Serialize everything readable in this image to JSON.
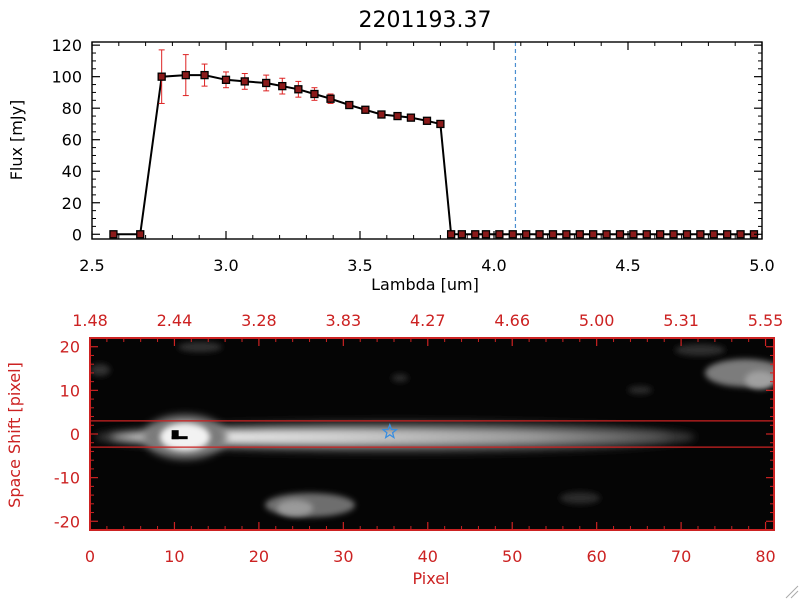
{
  "colors": {
    "axis_top": "#000000",
    "axis_bottom": "#cc2222",
    "errorbar": "#dd2222",
    "marker": "#000000",
    "marker_fill": "#8b1a1a",
    "dashed_line": "#4a8fd0",
    "star": "#3a8ee0",
    "band_line": "#cc2222"
  },
  "chart_data": [
    {
      "type": "line",
      "title": "2201193.37",
      "xlabel": "Lambda [um]",
      "ylabel": "Flux [mJy]",
      "xlim": [
        2.5,
        5.0
      ],
      "ylim": [
        -3,
        122
      ],
      "x_ticks": [
        "2.5",
        "3.0",
        "3.5",
        "4.0",
        "4.5",
        "5.0"
      ],
      "x_tick_values": [
        2.5,
        3.0,
        3.5,
        4.0,
        4.5,
        5.0
      ],
      "y_ticks": [
        "0",
        "20",
        "40",
        "60",
        "80",
        "100",
        "120"
      ],
      "y_tick_values": [
        0,
        20,
        40,
        60,
        80,
        100,
        120
      ],
      "vline_x": 4.08,
      "series": [
        {
          "x": [
            2.58,
            2.68,
            2.76,
            2.85,
            2.92,
            3.0,
            3.07,
            3.15,
            3.21,
            3.27,
            3.33,
            3.39,
            3.46,
            3.52,
            3.58,
            3.64,
            3.69,
            3.75,
            3.8,
            3.84,
            3.88,
            3.93,
            3.97,
            4.02,
            4.07,
            4.12,
            4.17,
            4.22,
            4.27,
            4.32,
            4.37,
            4.42,
            4.47,
            4.52,
            4.57,
            4.62,
            4.67,
            4.72,
            4.77,
            4.82,
            4.87,
            4.92,
            4.97
          ],
          "y": [
            0,
            0,
            100,
            101,
            101,
            98,
            97,
            96,
            94,
            92,
            89,
            86,
            82,
            79,
            76,
            75,
            74,
            72,
            70,
            0,
            0,
            0,
            0,
            0,
            0,
            0,
            0,
            0,
            0,
            0,
            0,
            0,
            0,
            0,
            0,
            0,
            0,
            0,
            0,
            0,
            0,
            0,
            0
          ],
          "err": [
            0,
            0,
            17,
            13,
            7,
            5,
            5,
            5,
            5,
            5,
            4,
            3,
            2,
            1,
            1,
            1,
            1,
            1,
            2,
            0,
            0,
            0,
            0,
            0,
            0,
            0,
            0,
            0,
            0,
            0,
            0,
            0,
            0,
            0,
            0,
            0,
            0,
            0,
            0,
            0,
            0,
            0,
            0
          ]
        }
      ]
    },
    {
      "type": "heatmap",
      "xlabel": "Pixel",
      "ylabel": "Space Shift [pixel]",
      "xlim": [
        0,
        81
      ],
      "ylim": [
        -22,
        22
      ],
      "x_ticks": [
        "0",
        "10",
        "20",
        "30",
        "40",
        "50",
        "60",
        "70",
        "80"
      ],
      "x_tick_values": [
        0,
        10,
        20,
        30,
        40,
        50,
        60,
        70,
        80
      ],
      "y_ticks": [
        "-20",
        "-10",
        "0",
        "10",
        "20"
      ],
      "y_tick_values": [
        -20,
        -10,
        0,
        10,
        20
      ],
      "top_ticks": [
        "1.48",
        "2.44",
        "3.28",
        "3.83",
        "4.27",
        "4.66",
        "5.00",
        "5.31",
        "5.55"
      ],
      "top_tick_values": [
        0,
        10,
        20,
        30,
        40,
        50,
        60,
        70,
        80
      ],
      "band": [
        -3,
        3
      ],
      "star": {
        "x": 35.5,
        "y": 0.5
      },
      "marker": {
        "x": 10.5,
        "y": -0.5
      }
    }
  ]
}
